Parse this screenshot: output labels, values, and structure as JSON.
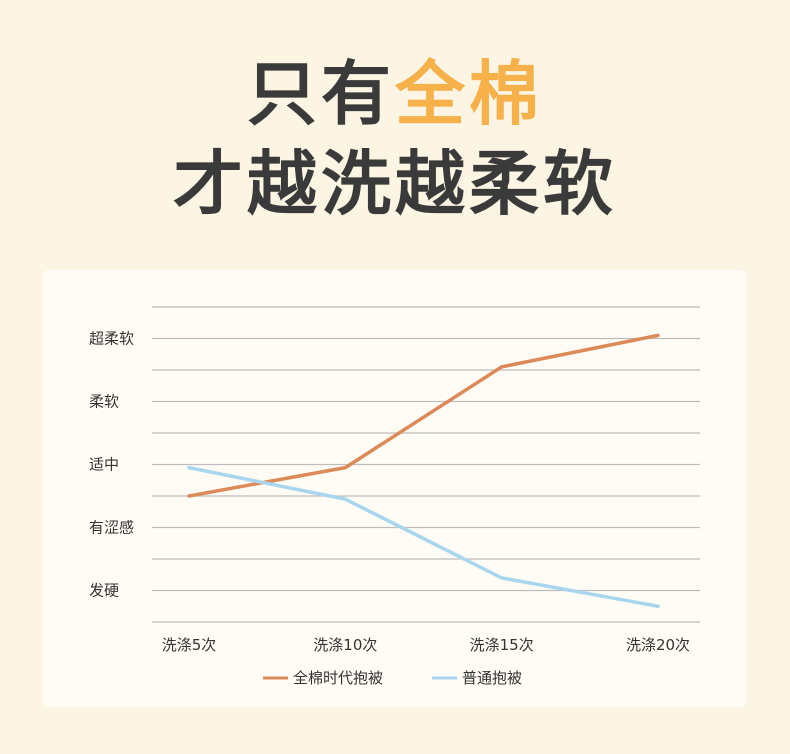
{
  "headline": {
    "line1_prefix": "只有",
    "line1_accent": "全棉",
    "line2": "才越洗越柔软"
  },
  "colors": {
    "background": "#fcf5e4",
    "accent": "#f6b14b",
    "headline_text": "#3a3a3a",
    "series_cotton": "#dc8a59",
    "series_normal": "#a9d6ef",
    "grid": "#bdbdbd"
  },
  "chart_data": {
    "type": "line",
    "categories": [
      "洗涤5次",
      "洗涤10次",
      "洗涤15次",
      "洗涤20次"
    ],
    "y_levels": [
      "发硬",
      "有涩感",
      "适中",
      "柔软",
      "超柔软"
    ],
    "y_level_values": [
      1,
      2,
      3,
      4,
      5
    ],
    "ylim": [
      0.5,
      5.5
    ],
    "grid": true,
    "legend_position": "bottom-center",
    "series": [
      {
        "name": "全棉时代抱被",
        "color": "#dc8a59",
        "values": [
          2.5,
          2.95,
          4.55,
          5.05
        ]
      },
      {
        "name": "普通抱被",
        "color": "#a9d6ef",
        "values": [
          2.95,
          2.45,
          1.2,
          0.75
        ]
      }
    ]
  }
}
